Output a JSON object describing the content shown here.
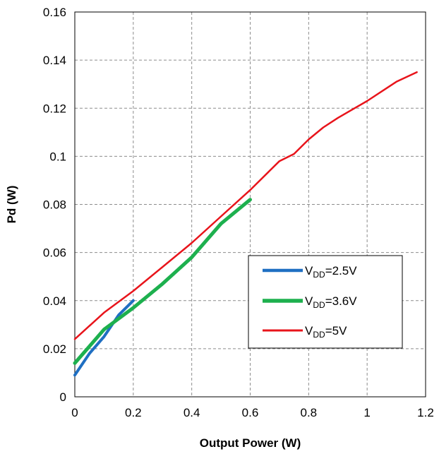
{
  "chart_data": {
    "type": "line",
    "title": "",
    "xlabel": "Output Power (W)",
    "ylabel": "Pd (W)",
    "xlim": [
      0,
      1.2
    ],
    "ylim": [
      0,
      0.16
    ],
    "x_ticks": [
      "0",
      "0.2",
      "0.4",
      "0.6",
      "0.8",
      "1",
      "1.2"
    ],
    "y_ticks": [
      "0",
      "0.02",
      "0.04",
      "0.06",
      "0.08",
      "0.1",
      "0.12",
      "0.14",
      "0.16"
    ],
    "grid": true,
    "legend_position": "bottom-right",
    "series": [
      {
        "name_main": "V",
        "name_sub": "DD",
        "name_rest": "=2.5V",
        "color": "#1f6fc2",
        "x": [
          0,
          0.05,
          0.1,
          0.15,
          0.2
        ],
        "y": [
          0.009,
          0.018,
          0.025,
          0.034,
          0.04
        ]
      },
      {
        "name_main": "V",
        "name_sub": "DD",
        "name_rest": "=3.6V",
        "color": "#1db04e",
        "x": [
          0,
          0.05,
          0.1,
          0.2,
          0.3,
          0.4,
          0.5,
          0.6
        ],
        "y": [
          0.014,
          0.021,
          0.028,
          0.037,
          0.047,
          0.058,
          0.072,
          0.082
        ]
      },
      {
        "name_main": "V",
        "name_sub": "DD",
        "name_rest": "=5V",
        "color": "#e8141b",
        "x": [
          0,
          0.1,
          0.2,
          0.3,
          0.4,
          0.5,
          0.6,
          0.7,
          0.75,
          0.8,
          0.85,
          0.9,
          1.0,
          1.1,
          1.17
        ],
        "y": [
          0.024,
          0.035,
          0.044,
          0.054,
          0.064,
          0.075,
          0.086,
          0.098,
          0.101,
          0.107,
          0.112,
          0.116,
          0.123,
          0.131,
          0.135
        ]
      }
    ]
  }
}
